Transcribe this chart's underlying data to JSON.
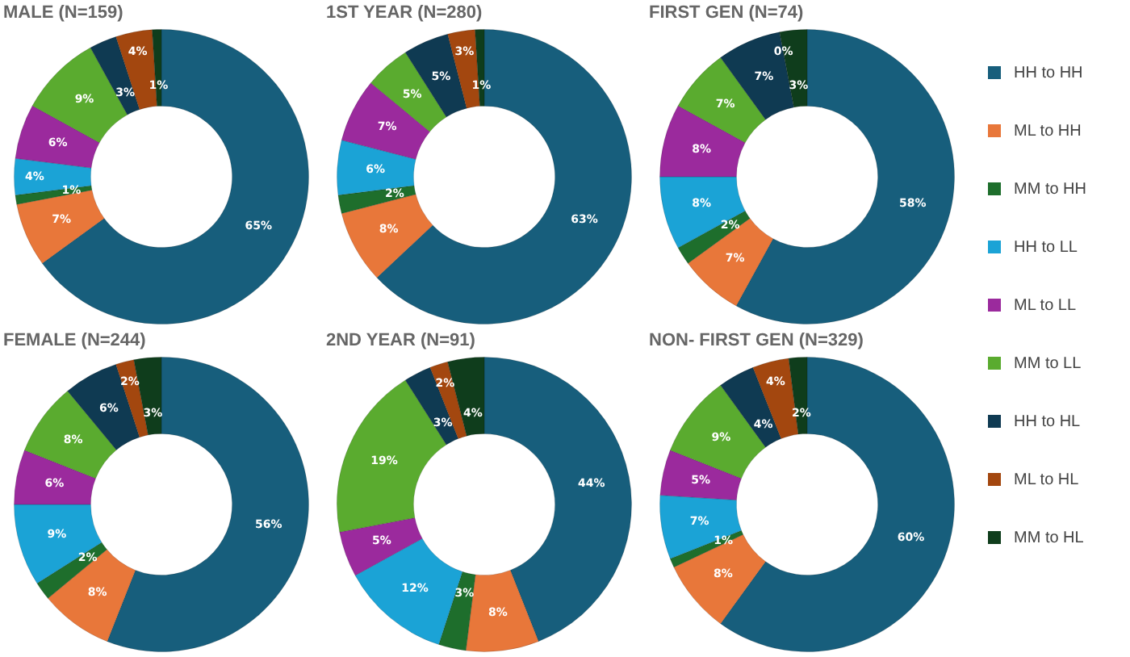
{
  "chart_data": [
    {
      "type": "donut",
      "title": "MALE (N=159)",
      "categories": [
        "HH to HH",
        "ML to HH",
        "MM to HH",
        "HH to LL",
        "ML to LL",
        "MM to LL",
        "HH to HL",
        "ML to HL",
        "MM to HL"
      ],
      "values": [
        65,
        7,
        1,
        4,
        6,
        9,
        3,
        4,
        1
      ],
      "value_labels": [
        "65%",
        "7%",
        "1%",
        "4%",
        "6%",
        "9%",
        "3%",
        "4%",
        "1%"
      ],
      "colors": [
        "#175e7c",
        "#e8773a",
        "#1e6e2c",
        "#1ba3d6",
        "#9b2a9d",
        "#5aab2f",
        "#0f3a52",
        "#a3470f",
        "#0f3d1c"
      ],
      "legend": "right"
    },
    {
      "type": "donut",
      "title": "1ST YEAR (N=280)",
      "categories": [
        null,
        null,
        null,
        null,
        null,
        null,
        null,
        null,
        null
      ],
      "values": [
        63,
        8,
        2,
        6,
        7,
        5,
        5,
        3,
        1
      ],
      "value_labels": [
        "63%",
        "8%",
        "2%",
        "6%",
        "7%",
        "5%",
        "5%",
        "3%",
        "1%"
      ],
      "colors": [
        "#175e7c",
        "#e8773a",
        "#1e6e2c",
        "#1ba3d6",
        "#9b2a9d",
        "#5aab2f",
        "#0f3a52",
        "#a3470f",
        "#0f3d1c"
      ]
    },
    {
      "type": "donut",
      "title": "FIRST GEN (N=74)",
      "categories": [
        null,
        null,
        null,
        null,
        null,
        null,
        null,
        null,
        null
      ],
      "values": [
        58,
        7,
        2,
        8,
        8,
        7,
        7,
        0,
        3
      ],
      "value_labels": [
        "58%",
        "7%",
        "2%",
        "8%",
        "8%",
        "7%",
        "7%",
        "0%",
        "3%"
      ],
      "colors": [
        "#175e7c",
        "#e8773a",
        "#1e6e2c",
        "#1ba3d6",
        "#9b2a9d",
        "#5aab2f",
        "#0f3a52",
        "#a3470f",
        "#0f3d1c"
      ]
    },
    {
      "type": "donut",
      "title": "FEMALE (N=244)",
      "categories": [
        null,
        null,
        null,
        null,
        null,
        null,
        null,
        null,
        null
      ],
      "values": [
        56,
        8,
        2,
        9,
        6,
        8,
        6,
        2,
        3
      ],
      "value_labels": [
        "56%",
        "8%",
        "2%",
        "9%",
        "6%",
        "8%",
        "6%",
        "2%",
        "3%"
      ],
      "colors": [
        "#175e7c",
        "#e8773a",
        "#1e6e2c",
        "#1ba3d6",
        "#9b2a9d",
        "#5aab2f",
        "#0f3a52",
        "#a3470f",
        "#0f3d1c"
      ]
    },
    {
      "type": "donut",
      "title": "2ND YEAR (N=91)",
      "categories": [
        null,
        null,
        null,
        null,
        null,
        null,
        null,
        null,
        null
      ],
      "values": [
        44,
        8,
        3,
        12,
        5,
        19,
        3,
        2,
        4
      ],
      "value_labels": [
        "44%",
        "8%",
        "3%",
        "12%",
        "5%",
        "19%",
        "3%",
        "2%",
        "4%"
      ],
      "colors": [
        "#175e7c",
        "#e8773a",
        "#1e6e2c",
        "#1ba3d6",
        "#9b2a9d",
        "#5aab2f",
        "#0f3a52",
        "#a3470f",
        "#0f3d1c"
      ]
    },
    {
      "type": "donut",
      "title": "NON- FIRST GEN (N=329)",
      "categories": [
        null,
        null,
        null,
        null,
        null,
        null,
        null,
        null,
        null
      ],
      "values": [
        60,
        8,
        1,
        7,
        5,
        9,
        4,
        4,
        2
      ],
      "value_labels": [
        "60%",
        "8%",
        "1%",
        "7%",
        "5%",
        "9%",
        "4%",
        "4%",
        "2%"
      ],
      "colors": [
        "#175e7c",
        "#e8773a",
        "#1e6e2c",
        "#1ba3d6",
        "#9b2a9d",
        "#5aab2f",
        "#0f3a52",
        "#a3470f",
        "#0f3d1c"
      ]
    }
  ]
}
